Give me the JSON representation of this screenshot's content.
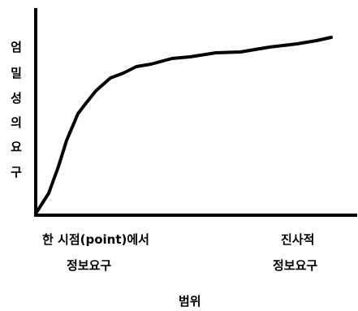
{
  "y_axis_label": [
    "엄",
    "밀",
    "성",
    "의",
    "요",
    "구"
  ],
  "x_left_line1": "한 시점(point)에서",
  "x_left_line2": "정보요구",
  "x_right_line1": "진사적",
  "x_right_line2": "정보요구",
  "x_axis_title": "범위"
}
